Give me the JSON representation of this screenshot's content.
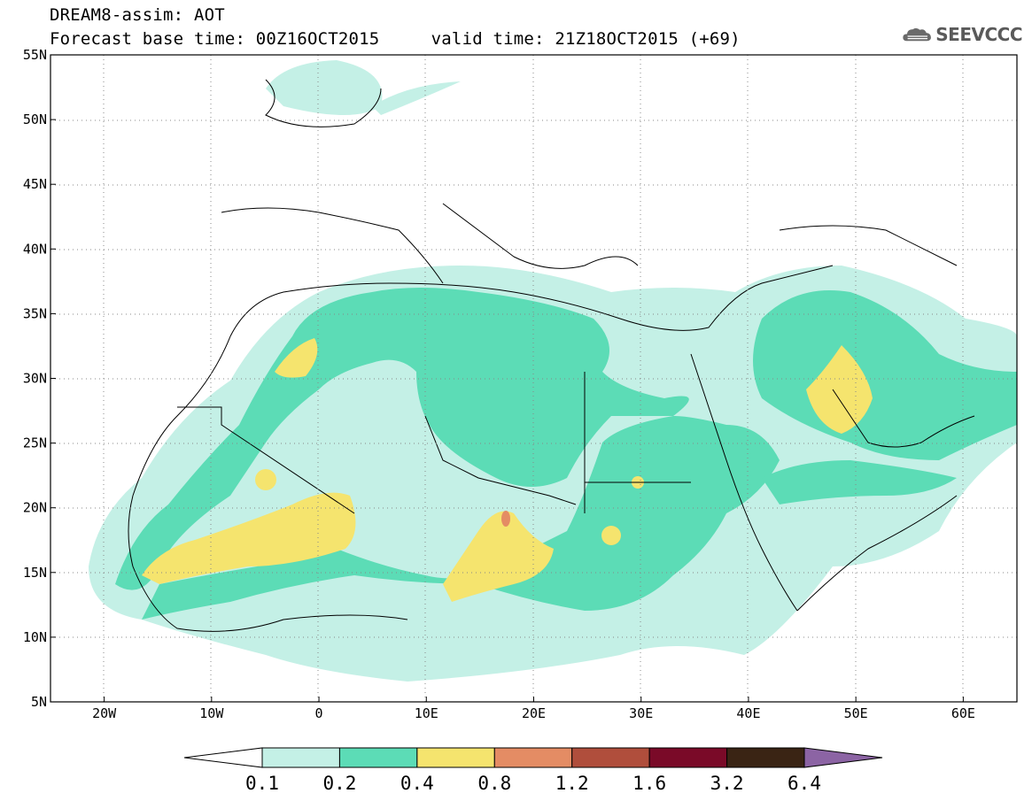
{
  "header": {
    "title": "DREAM8-assim: AOT",
    "base_label": "Forecast base time: 00Z16OCT2015",
    "valid_label": "valid time: 21Z18OCT2015 (+69)",
    "logo_text": "SEEVCCC"
  },
  "map": {
    "lat_labels": [
      "55N",
      "50N",
      "45N",
      "40N",
      "35N",
      "30N",
      "25N",
      "20N",
      "15N",
      "10N",
      "5N"
    ],
    "lon_labels": [
      "20W",
      "10W",
      "0",
      "10E",
      "20E",
      "30E",
      "40E",
      "50E",
      "60E"
    ],
    "lat_range": [
      5,
      55
    ],
    "lon_range": [
      -25,
      65
    ],
    "grid": "dotted"
  },
  "colorbar": {
    "labels": [
      "0.1",
      "0.2",
      "0.4",
      "0.8",
      "1.2",
      "1.6",
      "3.2",
      "6.4"
    ],
    "colors": [
      "#ffffff",
      "#c4f0e6",
      "#5cdcb6",
      "#f5e46e",
      "#e48c64",
      "#b04e3c",
      "#7a0a28",
      "#3a2414",
      "#8c64a4"
    ]
  }
}
